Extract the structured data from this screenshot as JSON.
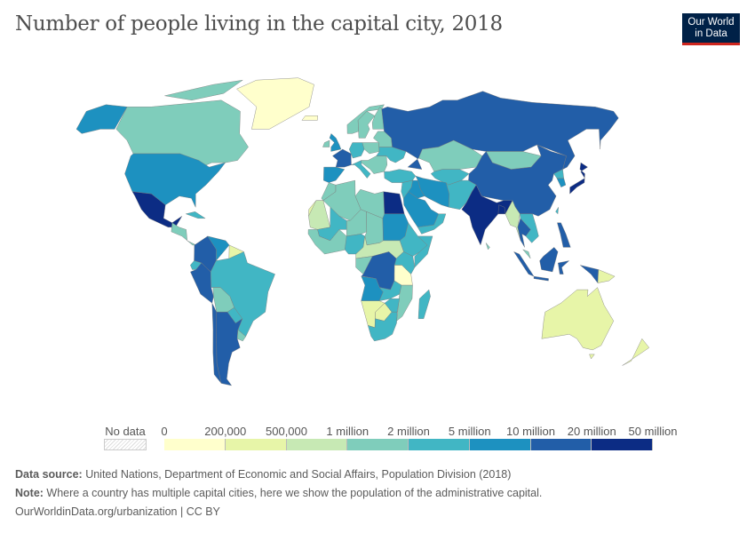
{
  "title": "Number of people living in the capital city, 2018",
  "logo": {
    "line1": "Our World",
    "line2": "in Data",
    "bg": "#002147",
    "accent": "#ce261e"
  },
  "legend": {
    "no_data_label": "No data",
    "tick_labels": [
      "0",
      "200,000",
      "500,000",
      "1 million",
      "2 million",
      "5 million",
      "10 million",
      "20 million",
      "50 million"
    ],
    "colors": [
      "#ffffcc",
      "#e7f5a8",
      "#c7e9b4",
      "#7fcdbb",
      "#41b6c4",
      "#1d91c0",
      "#225ea8",
      "#0c2c84"
    ]
  },
  "map_data": {
    "Canada": 3,
    "CanadaArctic": 3,
    "USA": 5,
    "Alaska": 5,
    "Mexico": 7,
    "CentralAmerica": 3,
    "Cuba": 4,
    "Greenland": 0,
    "Colombia": 6,
    "Venezuela": 5,
    "Guyanas": 1,
    "Ecuador": 4,
    "Peru": 6,
    "Brazil": 4,
    "Bolivia": 3,
    "Paraguay": 4,
    "Chile": 6,
    "Argentina": 6,
    "Uruguay": 3,
    "Iceland": 0,
    "UK": 5,
    "Ireland": 3,
    "France": 6,
    "Iberia": 5,
    "Norway": 3,
    "Sweden": 3,
    "Finland": 3,
    "Germany": 4,
    "Poland": 3,
    "Italy": 4,
    "Balkans": 3,
    "Ukraine": 4,
    "Belarus": 3,
    "Turkey": 4,
    "Russia": 6,
    "Kazakhstan": 3,
    "CentralAsia": 4,
    "Mongolia": 3,
    "China": 6,
    "SouthKorea": 5,
    "NorthKorea": 4,
    "Japan": 7,
    "Iran": 5,
    "Iraq": 5,
    "Saudi": 5,
    "Yemen": 4,
    "Levant": 4,
    "Afghanistan": 4,
    "India": 7,
    "Bangladesh": 7,
    "Myanmar": 2,
    "Thailand": 6,
    "Indochina": 4,
    "Malaysia": 3,
    "Sumatra": 6,
    "Java": 6,
    "Borneo": 6,
    "Sulawesi": 6,
    "WestPapua": 6,
    "PNG": 1,
    "Philippines": 6,
    "SriLanka": 3,
    "Taiwan": 4,
    "Morocco": 3,
    "WSahara": 1,
    "Algeria": 3,
    "Libya": 3,
    "Egypt": 7,
    "Mauritania": 2,
    "Mali": 4,
    "Niger": 3,
    "Chad": 3,
    "Sudan": 5,
    "WestAfrica": 3,
    "Nigeria": 4,
    "Ethiopia": 4,
    "Somalia": 4,
    "CAR": 2,
    "DRC": 6,
    "Congo": 3,
    "Kenya": 4,
    "Tanzania": 0,
    "Angola": 5,
    "Zambia": 4,
    "Mozambique": 3,
    "Namibia": 1,
    "Botswana": 1,
    "Zimbabwe": 4,
    "SouthAfrica": 4,
    "Madagascar": 4,
    "Australia": 1,
    "Tasmania": 1,
    "NewZealand": 1
  },
  "footer": {
    "source_label": "Data source:",
    "source_text": " United Nations, Department of Economic and Social Affairs, Population Division (2018)",
    "note_label": "Note:",
    "note_text": " Where a country has multiple capital cities, here we show the population of the administrative capital.",
    "link": "OurWorldinData.org/urbanization | CC BY"
  }
}
